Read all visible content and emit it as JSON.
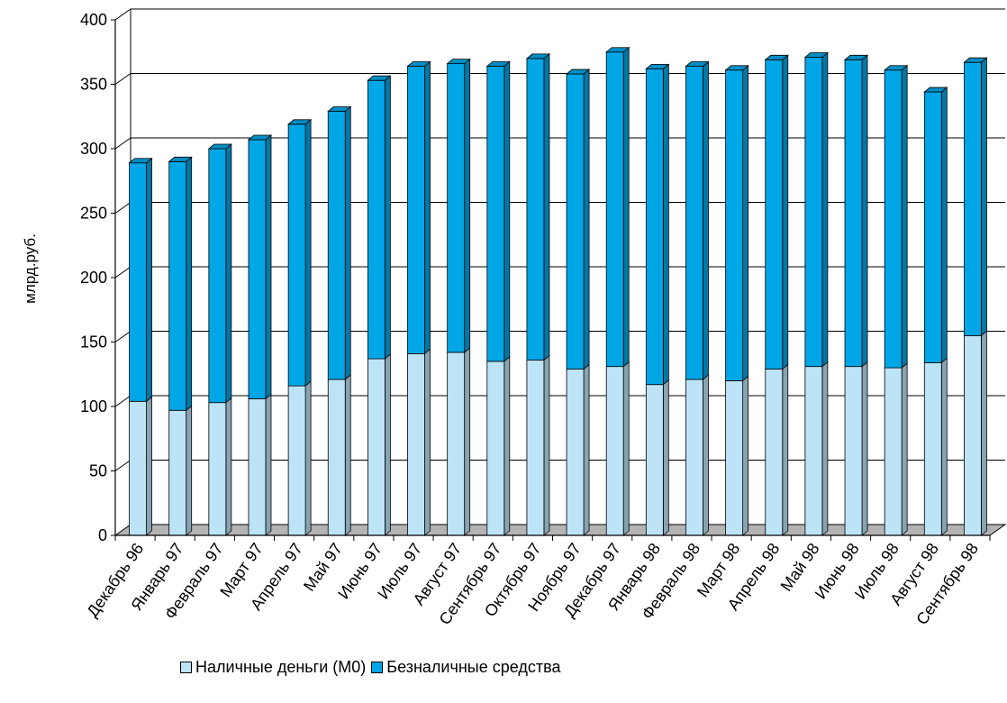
{
  "chart_data": {
    "type": "bar",
    "stacked": true,
    "three_d": true,
    "ylabel": "млрд.руб.",
    "ylim": [
      0,
      400
    ],
    "yticks": [
      0,
      50,
      100,
      150,
      200,
      250,
      300,
      350,
      400
    ],
    "grid": true,
    "legend_position": "bottom",
    "categories": [
      "Декабрь 96",
      "Январь 97",
      "Февраль 97",
      "Март 97",
      "Апрель 97",
      "Май 97",
      "Июнь 97",
      "Июль 97",
      "Август 97",
      "Сентябрь 97",
      "Октябрь 97",
      "Ноябрь 97",
      "Декабрь 97",
      "Январь 98",
      "Февраль 98",
      "Март 98",
      "Апрель 98",
      "Май 98",
      "Июнь 98",
      "Июль 98",
      "Август 98",
      "Сентябрь 98"
    ],
    "series": [
      {
        "name": "Наличные деньги (М0)",
        "color": "#bde3f7",
        "values": [
          104,
          97,
          103,
          106,
          116,
          121,
          137,
          141,
          142,
          135,
          136,
          129,
          131,
          117,
          121,
          120,
          129,
          131,
          131,
          130,
          134,
          155
        ]
      },
      {
        "name": "Безналичные средства",
        "color": "#00a6e6",
        "values": [
          185,
          193,
          197,
          201,
          203,
          208,
          216,
          223,
          224,
          229,
          234,
          229,
          244,
          245,
          243,
          241,
          240,
          240,
          238,
          231,
          210,
          212
        ]
      }
    ]
  }
}
